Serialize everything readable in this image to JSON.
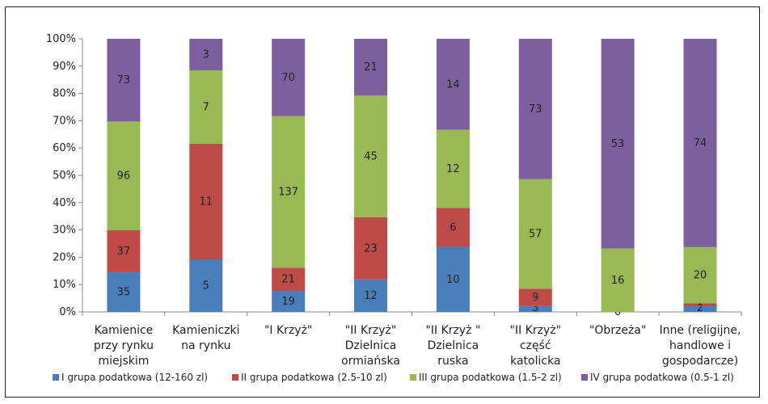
{
  "chart_data": {
    "type": "bar",
    "stacked": "percent",
    "categories": [
      [
        "Kamienice",
        "przy rynku",
        "miejskim"
      ],
      [
        "Kamieniczki",
        "na rynku"
      ],
      [
        "\"I Krzyż\""
      ],
      [
        "\"II Krzyż\"",
        "Dzielnica",
        "ormiańska"
      ],
      [
        "\"II Krzyż \"",
        "Dzielnica",
        "ruska"
      ],
      [
        "\"II Krzyż\"",
        "część",
        "katolicka"
      ],
      [
        "\"Obrzeża\""
      ],
      [
        "Inne (religijne,",
        "handlowe i",
        "gospodarcze)"
      ]
    ],
    "series": [
      {
        "name": "I grupa podatkowa (12-160 zl)",
        "color": "#4a7ebb",
        "values": [
          35,
          5,
          19,
          12,
          10,
          3,
          0,
          2
        ]
      },
      {
        "name": "II grupa podatkowa (2.5-10 zl)",
        "color": "#be4b48",
        "values": [
          37,
          11,
          21,
          23,
          6,
          9,
          0,
          1
        ]
      },
      {
        "name": "III grupa podatkowa (1.5-2 zl)",
        "color": "#98b954",
        "values": [
          96,
          7,
          137,
          45,
          12,
          57,
          16,
          20
        ]
      },
      {
        "name": "IV grupa podatkowa (0.5-1 zl)",
        "color": "#7d5fa0",
        "values": [
          73,
          3,
          70,
          21,
          14,
          73,
          53,
          74
        ]
      }
    ],
    "yticks": [
      "0%",
      "10%",
      "20%",
      "30%",
      "40%",
      "50%",
      "60%",
      "70%",
      "80%",
      "90%",
      "100%"
    ],
    "ylim": [
      0,
      100
    ],
    "grid": false,
    "legend_position": "bottom"
  }
}
